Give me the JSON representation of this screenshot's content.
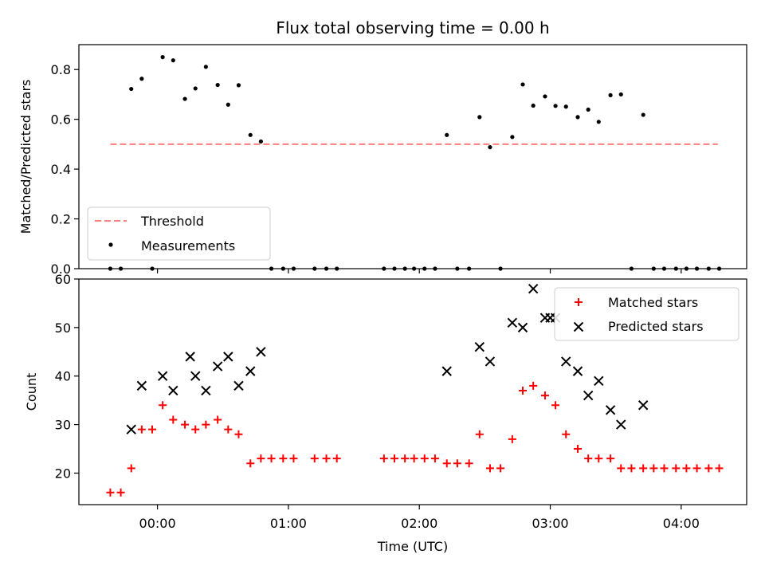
{
  "chart_data": [
    {
      "type": "scatter",
      "title": "Flux total observing time = 0.00 h",
      "xlabel": "",
      "ylabel": "Matched/Predicted stars",
      "xlim": [
        -0.6,
        4.5
      ],
      "ylim": [
        0.0,
        0.9
      ],
      "yticks": [
        "0.0",
        "0.2",
        "0.4",
        "0.6",
        "0.8"
      ],
      "ytick_values": [
        0.0,
        0.2,
        0.4,
        0.6,
        0.8
      ],
      "x_tick_values": [
        0,
        1,
        2,
        3,
        4
      ],
      "legend": "lower-left",
      "threshold": {
        "name": "Threshold",
        "y": 0.5,
        "x_range": [
          -0.36,
          4.28
        ],
        "color": "#ff7f7f"
      },
      "series": [
        {
          "name": "Measurements",
          "color": "#000000",
          "x": [
            -0.36,
            -0.28,
            -0.2,
            -0.12,
            -0.04,
            0.04,
            0.12,
            0.21,
            0.29,
            0.37,
            0.46,
            0.54,
            0.62,
            0.71,
            0.79,
            0.87,
            0.96,
            1.04,
            1.2,
            1.29,
            1.37,
            1.73,
            1.81,
            1.89,
            1.96,
            2.04,
            2.12,
            2.21,
            2.29,
            2.38,
            2.46,
            2.54,
            2.62,
            2.71,
            2.79,
            2.87,
            2.96,
            3.04,
            3.12,
            3.21,
            3.29,
            3.37,
            3.46,
            3.54,
            3.62,
            3.71,
            3.79,
            3.87,
            3.96,
            4.04,
            4.12,
            4.21,
            4.29
          ],
          "y": [
            0.0,
            0.0,
            0.722,
            0.763,
            0.0,
            0.85,
            0.837,
            0.682,
            0.724,
            0.811,
            0.738,
            0.659,
            0.737,
            0.537,
            0.511,
            0.0,
            0.0,
            0.0,
            0.0,
            0.0,
            0.0,
            0.0,
            0.0,
            0.0,
            0.0,
            0.0,
            0.0,
            0.537,
            0.0,
            0.0,
            0.609,
            0.488,
            0.0,
            0.529,
            0.74,
            0.655,
            0.692,
            0.654,
            0.651,
            0.609,
            0.639,
            0.59,
            0.697,
            0.7,
            0.0,
            0.618,
            0.0,
            0.0,
            0.0,
            0.0,
            0.0,
            0.0,
            0.0
          ]
        }
      ]
    },
    {
      "type": "scatter",
      "title": "",
      "xlabel": "Time (UTC)",
      "ylabel": "Count",
      "xlim": [
        -0.6,
        4.5
      ],
      "ylim": [
        13.5,
        60
      ],
      "yticks": [
        "20",
        "30",
        "40",
        "50",
        "60"
      ],
      "ytick_values": [
        20,
        30,
        40,
        50,
        60
      ],
      "xticks": [
        "00:00",
        "01:00",
        "02:00",
        "03:00",
        "04:00"
      ],
      "x_tick_values": [
        0,
        1,
        2,
        3,
        4
      ],
      "legend": "upper-right",
      "series": [
        {
          "name": "Matched stars",
          "marker": "plus",
          "color": "#ff0000",
          "x": [
            -0.36,
            -0.28,
            -0.2,
            -0.12,
            -0.04,
            0.04,
            0.12,
            0.21,
            0.29,
            0.37,
            0.46,
            0.54,
            0.62,
            0.71,
            0.79,
            0.87,
            0.96,
            1.04,
            1.2,
            1.29,
            1.37,
            1.73,
            1.81,
            1.89,
            1.96,
            2.04,
            2.12,
            2.21,
            2.29,
            2.38,
            2.46,
            2.54,
            2.62,
            2.71,
            2.79,
            2.87,
            2.96,
            3.04,
            3.12,
            3.21,
            3.29,
            3.37,
            3.46,
            3.54,
            3.62,
            3.71,
            3.79,
            3.87,
            3.96,
            4.04,
            4.12,
            4.21,
            4.29
          ],
          "y": [
            16,
            16,
            21,
            29,
            29,
            34,
            31,
            30,
            29,
            30,
            31,
            29,
            28,
            22,
            23,
            23,
            23,
            23,
            23,
            23,
            23,
            23,
            23,
            23,
            23,
            23,
            23,
            22,
            22,
            22,
            28,
            21,
            21,
            27,
            37,
            38,
            36,
            34,
            28,
            25,
            23,
            23,
            23,
            21,
            21,
            21,
            21,
            21,
            21,
            21,
            21,
            21,
            21
          ]
        },
        {
          "name": "Predicted stars",
          "marker": "x",
          "color": "#000000",
          "x": [
            -0.2,
            -0.12,
            0.04,
            0.12,
            0.25,
            0.29,
            0.37,
            0.46,
            0.54,
            0.62,
            0.71,
            0.79,
            2.21,
            2.46,
            2.54,
            2.71,
            2.79,
            2.87,
            2.96,
            3.0,
            3.04,
            3.12,
            3.21,
            3.29,
            3.37,
            3.46,
            3.54,
            3.71
          ],
          "y": [
            29,
            38,
            40,
            37,
            44,
            40,
            37,
            42,
            44,
            38,
            41,
            45,
            41,
            46,
            43,
            51,
            50,
            58,
            52,
            52,
            52,
            43,
            41,
            36,
            39,
            33,
            30,
            34
          ]
        }
      ]
    }
  ]
}
